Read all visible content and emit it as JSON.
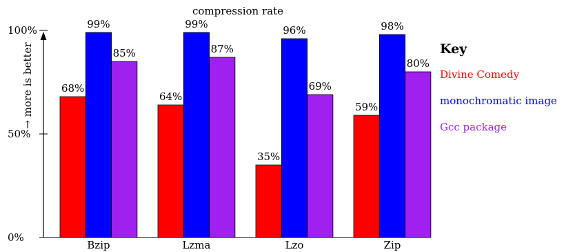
{
  "chart_data": {
    "type": "bar",
    "title": "compression rate",
    "xlabel": "",
    "ylabel": "→ more is better",
    "ylim": [
      0,
      100
    ],
    "yticks": [
      0,
      50,
      100
    ],
    "ytick_labels": [
      "0%",
      "50%",
      "100%"
    ],
    "categories": [
      "Bzip",
      "Lzma",
      "Lzo",
      "Zip"
    ],
    "series": [
      {
        "name": "Divine Comedy",
        "color": "#ff0000",
        "values": [
          68,
          64,
          35,
          59
        ],
        "labels": [
          "68%",
          "64%",
          "35%",
          "59%"
        ]
      },
      {
        "name": "monochromatic image",
        "color": "#0000ff",
        "values": [
          99,
          99,
          96,
          98
        ],
        "labels": [
          "99%",
          "99%",
          "96%",
          "98%"
        ]
      },
      {
        "name": "Gcc package",
        "color": "#a020f0",
        "values": [
          85,
          87,
          69,
          80
        ],
        "labels": [
          "85%",
          "87%",
          "69%",
          "80%"
        ]
      }
    ],
    "legend": {
      "title": "Key",
      "position": "right"
    },
    "grid": false
  }
}
